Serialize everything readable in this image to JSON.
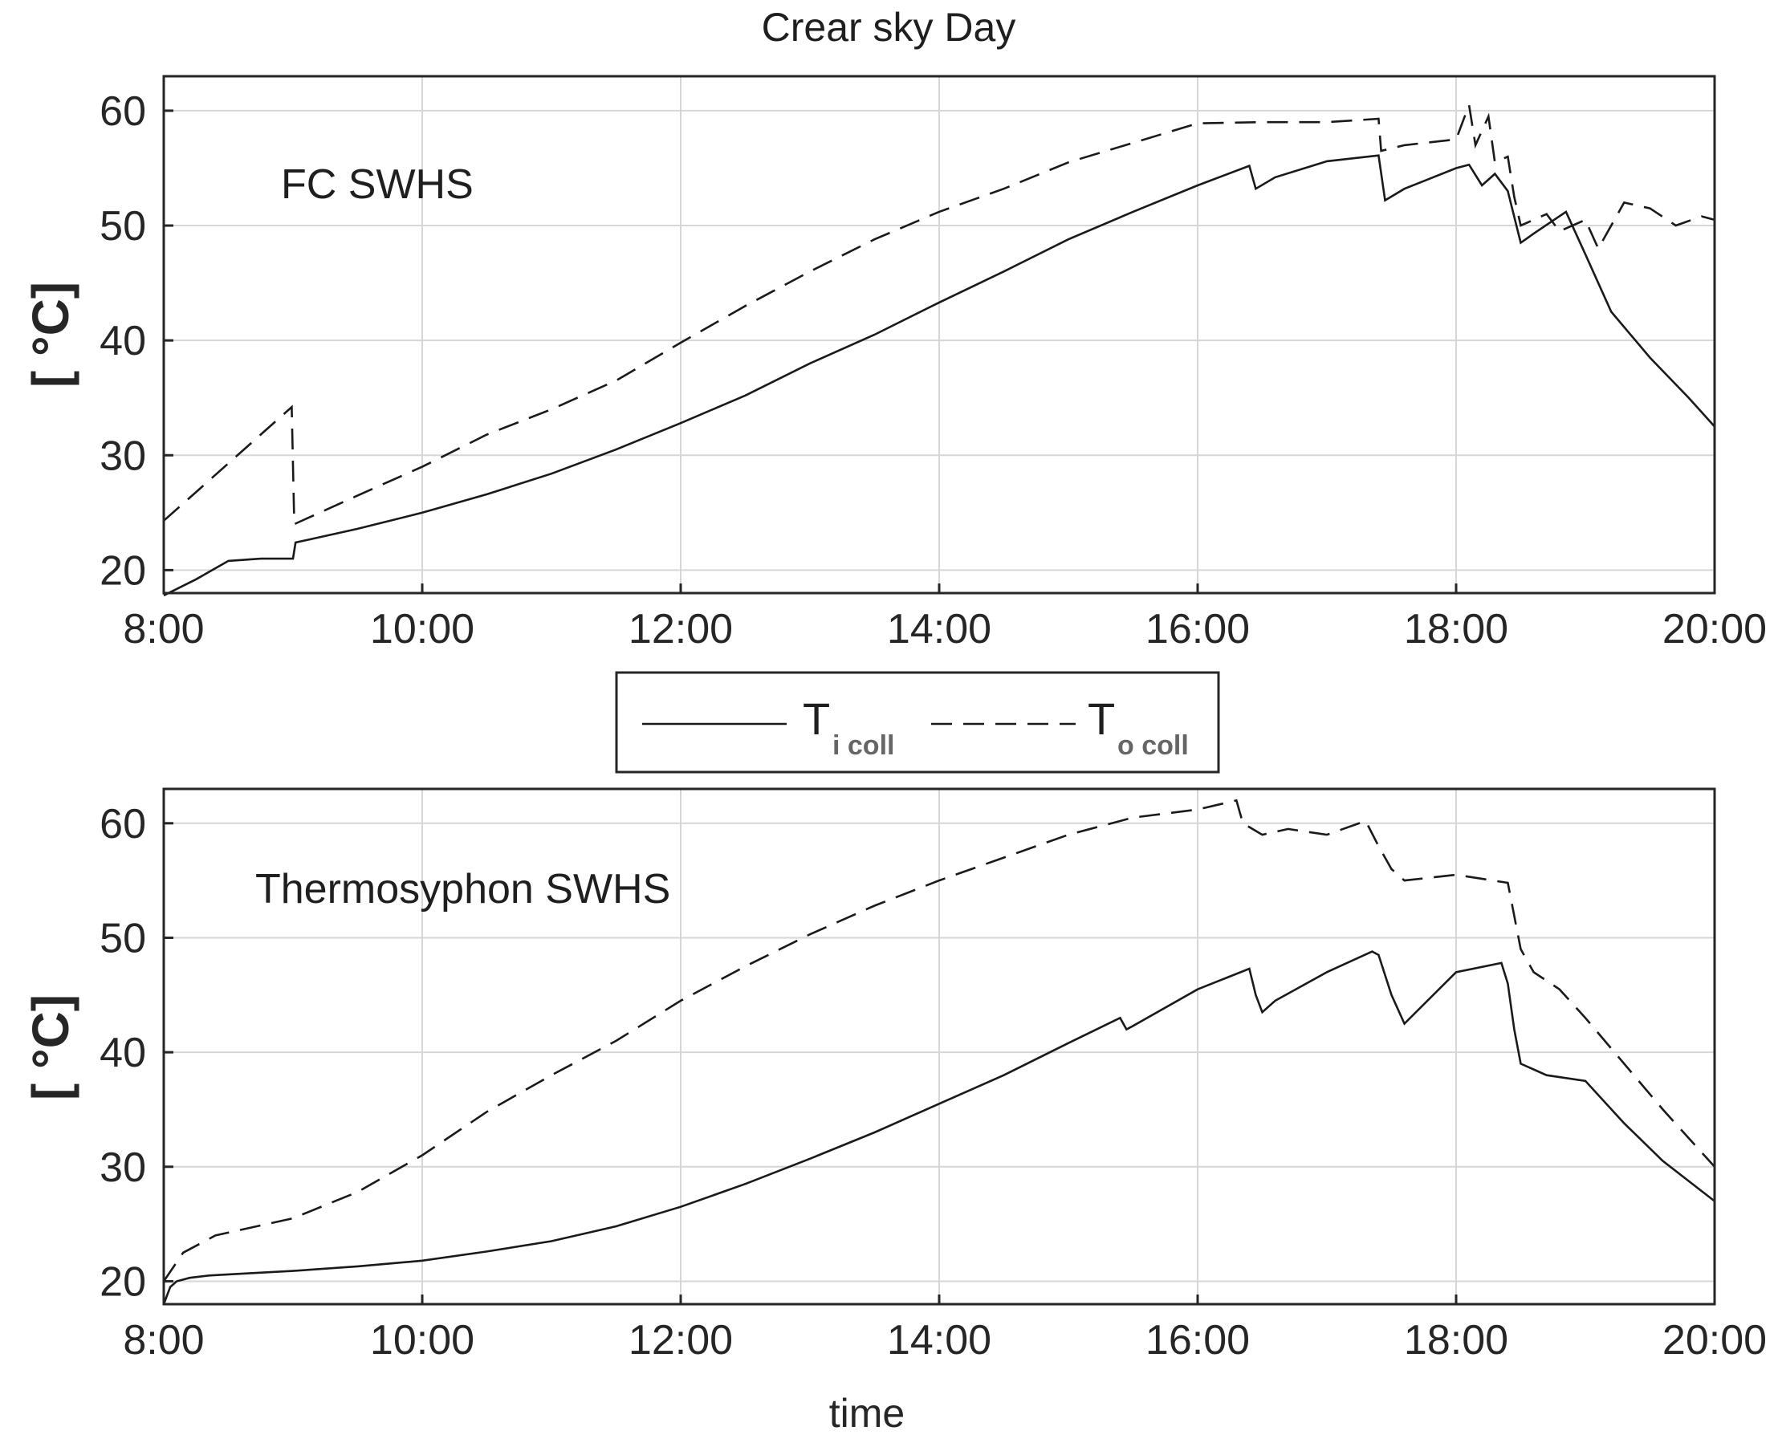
{
  "figure": {
    "title": "Crear sky Day",
    "legend": {
      "entries": [
        {
          "main": "T",
          "sub": "i coll",
          "style": "solid"
        },
        {
          "main": "T",
          "sub": "o coll",
          "style": "dashed"
        }
      ]
    }
  },
  "chart_data": [
    {
      "type": "line",
      "annotation": "FC SWHS",
      "xlabel": "",
      "ylabel": "[ °C]",
      "xlim": [
        8,
        20
      ],
      "ylim": [
        18,
        63
      ],
      "xticks": [
        8,
        10,
        12,
        14,
        16,
        18,
        20
      ],
      "xtick_labels": [
        "8:00",
        "10:00",
        "12:00",
        "14:00",
        "16:00",
        "18:00",
        "20:00"
      ],
      "yticks": [
        20,
        30,
        40,
        50,
        60
      ],
      "ytick_labels": [
        "20",
        "30",
        "40",
        "50",
        "60"
      ],
      "grid": true,
      "series": [
        {
          "name": "T i coll",
          "style": "solid",
          "x": [
            8.0,
            8.25,
            8.5,
            8.75,
            9.0,
            9.02,
            9.5,
            10.0,
            10.5,
            11.0,
            11.5,
            12.0,
            12.5,
            13.0,
            13.5,
            14.0,
            14.5,
            15.0,
            15.5,
            16.0,
            16.4,
            16.45,
            16.6,
            17.0,
            17.4,
            17.45,
            17.6,
            18.0,
            18.1,
            18.2,
            18.3,
            18.4,
            18.5,
            18.6,
            18.85,
            19.0,
            19.2,
            19.5,
            19.8,
            20.0
          ],
          "values": [
            17.8,
            19.2,
            20.8,
            21.0,
            21.0,
            22.4,
            23.6,
            25.0,
            26.6,
            28.4,
            30.5,
            32.8,
            35.2,
            38.0,
            40.5,
            43.3,
            46.0,
            48.8,
            51.2,
            53.5,
            55.2,
            53.2,
            54.2,
            55.6,
            56.1,
            52.2,
            53.2,
            55.0,
            55.3,
            53.5,
            54.5,
            53.0,
            48.5,
            49.3,
            51.2,
            47.5,
            42.5,
            38.5,
            35.0,
            32.5
          ]
        },
        {
          "name": "T o coll",
          "style": "dashed",
          "x": [
            8.0,
            8.25,
            8.5,
            8.75,
            8.99,
            9.01,
            9.5,
            10.0,
            10.5,
            11.0,
            11.5,
            12.0,
            12.5,
            13.0,
            13.5,
            14.0,
            14.5,
            15.0,
            15.5,
            16.0,
            16.5,
            17.0,
            17.4,
            17.42,
            17.6,
            18.0,
            18.1,
            18.15,
            18.25,
            18.3,
            18.4,
            18.45,
            18.5,
            18.7,
            18.8,
            19.0,
            19.1,
            19.3,
            19.5,
            19.7,
            19.9,
            20.0
          ],
          "values": [
            24.3,
            26.8,
            29.3,
            31.8,
            34.2,
            24.0,
            26.5,
            29.0,
            31.8,
            34.0,
            36.5,
            39.8,
            43.0,
            46.0,
            48.8,
            51.2,
            53.2,
            55.5,
            57.2,
            58.9,
            59.0,
            59.0,
            59.3,
            56.5,
            57.0,
            57.5,
            60.5,
            57.0,
            59.5,
            55.5,
            56.0,
            52.5,
            50.0,
            51.0,
            49.5,
            50.5,
            48.0,
            52.0,
            51.5,
            50.0,
            50.8,
            50.5
          ]
        }
      ]
    },
    {
      "type": "line",
      "annotation": "Thermosyphon SWHS",
      "xlabel": "time",
      "ylabel": "[ °C]",
      "xlim": [
        8,
        20
      ],
      "ylim": [
        18,
        63
      ],
      "xticks": [
        8,
        10,
        12,
        14,
        16,
        18,
        20
      ],
      "xtick_labels": [
        "8:00",
        "10:00",
        "12:00",
        "14:00",
        "16:00",
        "18:00",
        "20:00"
      ],
      "yticks": [
        20,
        30,
        40,
        50,
        60
      ],
      "ytick_labels": [
        "20",
        "30",
        "40",
        "50",
        "60"
      ],
      "grid": true,
      "series": [
        {
          "name": "T i coll",
          "style": "solid",
          "x": [
            8.0,
            8.05,
            8.1,
            8.2,
            8.35,
            8.5,
            9.0,
            9.5,
            10.0,
            10.5,
            11.0,
            11.5,
            12.0,
            12.5,
            13.0,
            13.5,
            14.0,
            14.5,
            15.0,
            15.4,
            15.45,
            15.5,
            16.0,
            16.4,
            16.45,
            16.5,
            16.6,
            17.0,
            17.35,
            17.4,
            17.5,
            17.6,
            18.0,
            18.35,
            18.4,
            18.45,
            18.5,
            18.7,
            19.0,
            19.3,
            19.6,
            20.0
          ],
          "values": [
            18.0,
            19.5,
            20.0,
            20.3,
            20.5,
            20.6,
            20.9,
            21.3,
            21.8,
            22.6,
            23.5,
            24.8,
            26.5,
            28.5,
            30.7,
            33.0,
            35.5,
            38.0,
            40.8,
            43.0,
            42.0,
            42.3,
            45.5,
            47.3,
            45.0,
            43.5,
            44.5,
            47.0,
            48.8,
            48.5,
            45.0,
            42.5,
            47.0,
            47.8,
            46.0,
            42.0,
            39.0,
            38.0,
            37.5,
            33.8,
            30.5,
            27.0
          ]
        },
        {
          "name": "T o coll",
          "style": "dashed",
          "x": [
            8.0,
            8.15,
            8.4,
            9.0,
            9.5,
            10.0,
            10.5,
            11.0,
            11.5,
            12.0,
            12.5,
            13.0,
            13.5,
            14.0,
            14.5,
            15.0,
            15.5,
            16.0,
            16.3,
            16.35,
            16.5,
            16.7,
            17.0,
            17.3,
            17.4,
            17.5,
            17.6,
            18.0,
            18.4,
            18.5,
            18.6,
            18.8,
            19.0,
            19.3,
            19.6,
            20.0
          ],
          "values": [
            20.0,
            22.5,
            24.0,
            25.5,
            27.8,
            31.0,
            34.8,
            38.0,
            41.0,
            44.5,
            47.5,
            50.3,
            52.8,
            55.0,
            57.0,
            59.0,
            60.5,
            61.2,
            62.0,
            60.0,
            59.0,
            59.5,
            59.0,
            60.2,
            58.0,
            56.0,
            55.0,
            55.5,
            54.8,
            49.0,
            47.0,
            45.5,
            43.0,
            39.0,
            35.0,
            30.0
          ]
        }
      ]
    }
  ]
}
